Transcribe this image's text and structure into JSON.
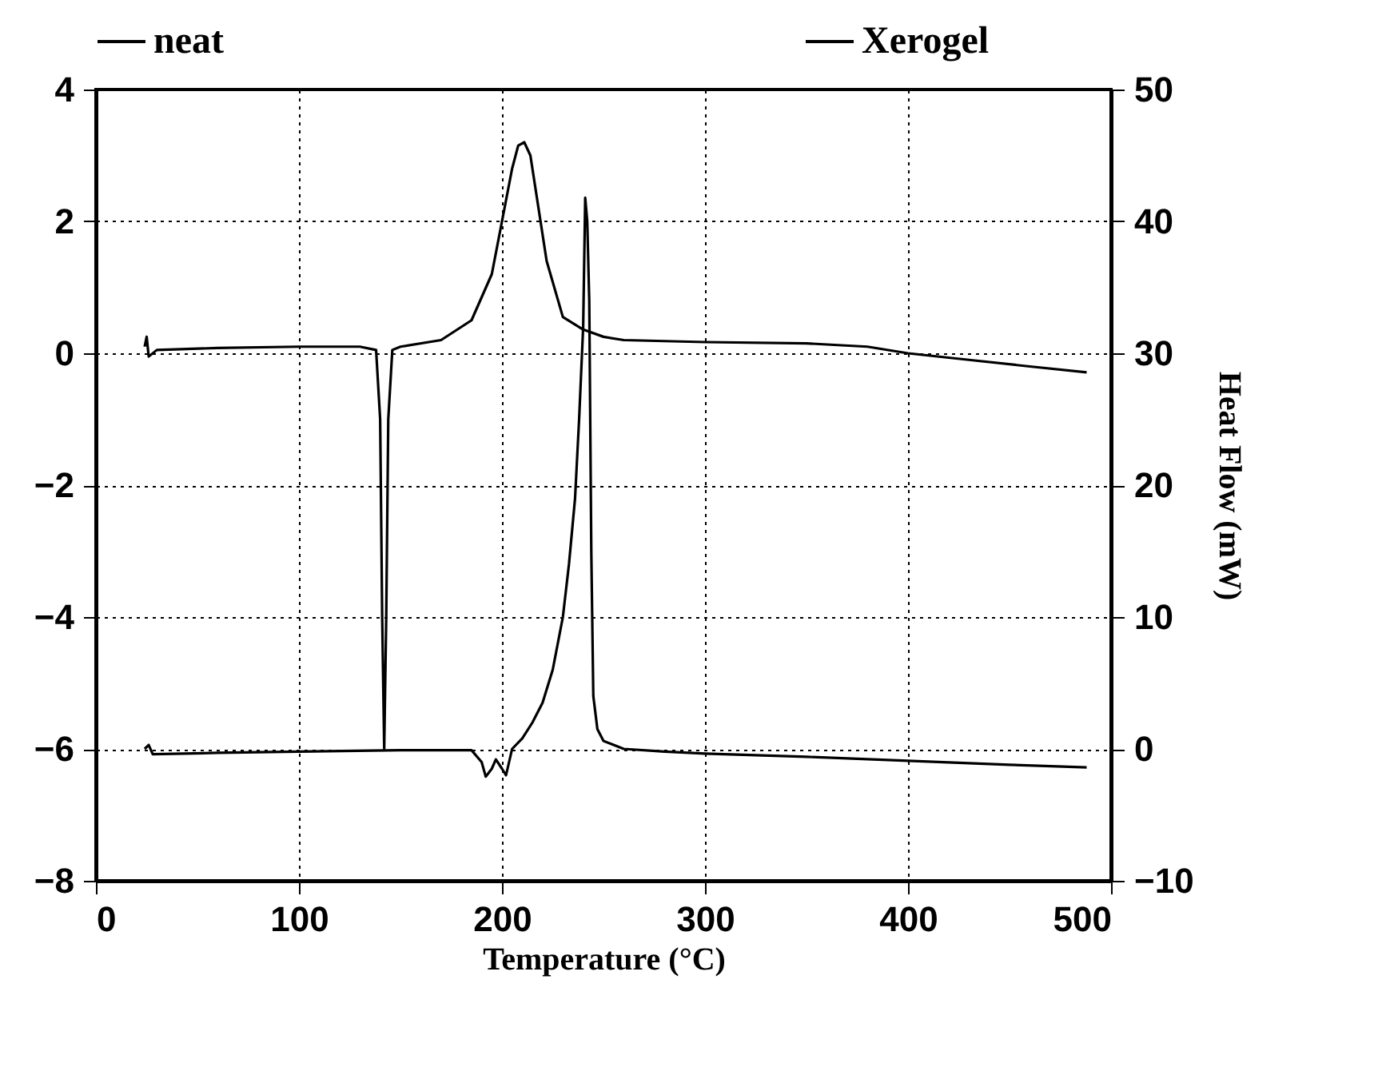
{
  "chart_data": {
    "type": "line",
    "xlabel": "Temperature (°C)",
    "y2label": "Heat Flow (mW)",
    "xlim": [
      0,
      500
    ],
    "xticks": [
      0,
      100,
      200,
      300,
      400,
      500
    ],
    "ylim": [
      -8,
      4
    ],
    "yticks": [
      -8,
      -6,
      -4,
      -2,
      0,
      2,
      4
    ],
    "y2lim": [
      -10,
      50
    ],
    "y2ticks": [
      -10,
      0,
      10,
      20,
      30,
      40,
      50
    ],
    "grid": true,
    "legend": "top",
    "series": [
      {
        "name": "neat",
        "color": "#000000",
        "x": [
          24,
          25,
          26,
          30,
          60,
          100,
          130,
          138,
          140,
          141,
          142,
          143,
          144,
          146,
          150,
          170,
          185,
          195,
          200,
          205,
          208,
          211,
          214,
          218,
          222,
          230,
          240,
          250,
          260,
          300,
          350,
          380,
          400,
          430,
          460,
          488
        ],
        "values": [
          0.1,
          0.25,
          -0.05,
          0.05,
          0.08,
          0.1,
          0.1,
          0.05,
          -1,
          -4,
          -6,
          -4,
          -1,
          0.05,
          0.1,
          0.2,
          0.5,
          1.2,
          2.0,
          2.8,
          3.15,
          3.2,
          3.0,
          2.2,
          1.4,
          0.55,
          0.36,
          0.25,
          0.2,
          0.17,
          0.15,
          0.1,
          0.0,
          -0.1,
          -0.2,
          -0.29
        ]
      },
      {
        "name": "Xerogel",
        "color": "#000000",
        "axis": "y2",
        "x": [
          24,
          26,
          28,
          60,
          100,
          150,
          185,
          190,
          192,
          195,
          197,
          200,
          202,
          205,
          210,
          215,
          220,
          225,
          230,
          233,
          236,
          238,
          240,
          241,
          242,
          243,
          244,
          245,
          247,
          250,
          260,
          280,
          300,
          350,
          400,
          450,
          488
        ],
        "values": [
          0,
          0.3,
          -0.4,
          -0.3,
          -0.2,
          -0.1,
          -0.1,
          -1,
          -2.1,
          -1.5,
          -0.8,
          -1.5,
          -2,
          0,
          0.8,
          2,
          3.5,
          6,
          10,
          14,
          19,
          25,
          32,
          41.8,
          40,
          34,
          15,
          4,
          1.5,
          0.6,
          0,
          -0.2,
          -0.36,
          -0.6,
          -0.9,
          -1.2,
          -1.4
        ]
      }
    ]
  }
}
